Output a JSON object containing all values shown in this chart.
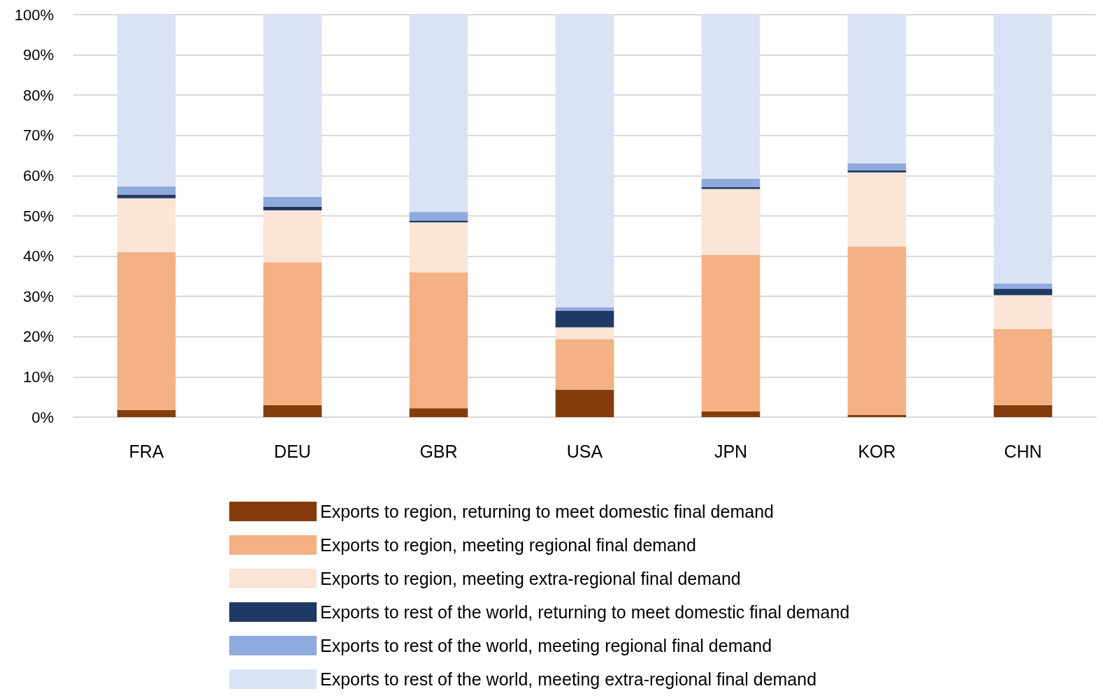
{
  "chart_data": {
    "type": "bar",
    "stacked": true,
    "categories": [
      "FRA",
      "DEU",
      "GBR",
      "USA",
      "JPN",
      "KOR",
      "CHN"
    ],
    "series": [
      {
        "name": "Exports to region, returning to meet domestic final demand",
        "color": "#843c0c",
        "values": [
          1.8,
          3.0,
          2.2,
          6.8,
          1.4,
          0.5,
          3.0
        ]
      },
      {
        "name": "Exports to region, meeting regional final demand",
        "color": "#f4b183",
        "values": [
          39.2,
          35.5,
          33.8,
          12.6,
          38.9,
          41.9,
          18.9
        ]
      },
      {
        "name": "Exports to region, meeting extra-regional final demand",
        "color": "#fbe5d6",
        "values": [
          13.4,
          12.9,
          12.4,
          2.9,
          16.4,
          18.4,
          8.4
        ]
      },
      {
        "name": "Exports to rest of the world, returning to meet domestic final demand",
        "color": "#1f3864",
        "values": [
          0.9,
          0.9,
          0.4,
          4.1,
          0.4,
          0.5,
          1.6
        ]
      },
      {
        "name": "Exports to rest of the world, meeting regional final demand",
        "color": "#8faadc",
        "values": [
          2.0,
          2.4,
          2.2,
          0.9,
          2.1,
          1.7,
          1.3
        ]
      },
      {
        "name": "Exports to rest of the world, meeting extra-regional final demand",
        "color": "#dae3f3",
        "values": [
          42.7,
          45.3,
          49.0,
          72.7,
          40.8,
          37.0,
          66.8
        ]
      }
    ],
    "ylim": [
      0,
      100
    ],
    "yticks": [
      {
        "value": 0,
        "label": "0%"
      },
      {
        "value": 10,
        "label": "10%"
      },
      {
        "value": 20,
        "label": "20%"
      },
      {
        "value": 30,
        "label": "30%"
      },
      {
        "value": 40,
        "label": "40%"
      },
      {
        "value": 50,
        "label": "50%"
      },
      {
        "value": 60,
        "label": "60%"
      },
      {
        "value": 70,
        "label": "70%"
      },
      {
        "value": 80,
        "label": "80%"
      },
      {
        "value": 90,
        "label": "90%"
      },
      {
        "value": 100,
        "label": "100%"
      }
    ],
    "grid": "y",
    "legend": "bottom"
  }
}
